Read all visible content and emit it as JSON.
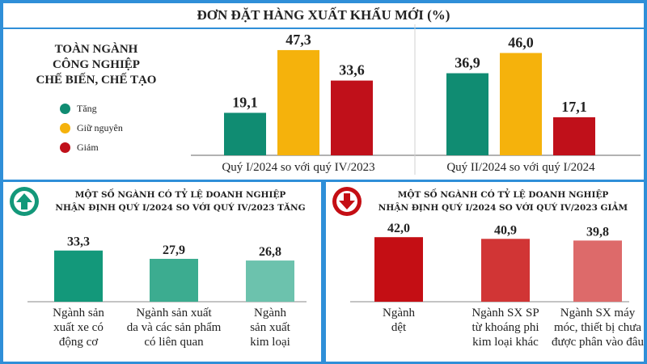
{
  "chart_data": [
    {
      "type": "bar",
      "title": "ĐƠN ĐẶT HÀNG XUẤT KHẨU MỚI (%)",
      "subtitle": "TOÀN NGÀNH CÔNG NGHIỆP CHẾ BIẾN, CHẾ TẠO",
      "subtitle_lines": [
        "TOÀN NGÀNH",
        "CÔNG NGHIỆP",
        "CHẾ BIẾN, CHẾ TẠO"
      ],
      "categories": [
        "Quý I/2024 so với quý IV/2023",
        "Quý II/2024 so với quý I/2024"
      ],
      "series": [
        {
          "name": "Tăng",
          "color": "#108c72",
          "values": [
            19.1,
            36.9
          ],
          "labels": [
            "19,1",
            "36,9"
          ]
        },
        {
          "name": "Giữ nguyên",
          "color": "#f5b20c",
          "values": [
            47.3,
            46.0
          ],
          "labels": [
            "47,3",
            "46,0"
          ]
        },
        {
          "name": "Giảm",
          "color": "#c0101a",
          "values": [
            33.6,
            17.1
          ],
          "labels": [
            "33,6",
            "17,1"
          ]
        }
      ],
      "ylim": [
        0,
        50
      ],
      "legend": "left"
    },
    {
      "type": "bar",
      "title": "MỘT SỐ NGÀNH CÓ TỶ LỆ DOANH NGHIỆP NHẬN ĐỊNH QUÝ I/2024 SO VỚI QUÝ IV/2023 TĂNG",
      "title_lines": [
        "MỘT SỐ NGÀNH CÓ TỶ LỆ DOANH NGHIỆP",
        "NHẬN ĐỊNH QUÝ I/2024 SO VỚI QUÝ IV/2023 TĂNG"
      ],
      "icon": "arrow-up-icon",
      "categories": [
        "Ngành sản xuất xe có động cơ",
        "Ngành sản xuất da và các sản phẩm có liên quan",
        "Ngành sản xuất kim loại"
      ],
      "category_lines": [
        [
          "Ngành sản",
          "xuất xe có",
          "động cơ"
        ],
        [
          "Ngành sản xuất",
          "da và các sản phẩm",
          "có liên quan"
        ],
        [
          "Ngành",
          "sản xuất",
          "kim loại"
        ]
      ],
      "values": [
        33.3,
        27.9,
        26.8
      ],
      "labels": [
        "33,3",
        "27,9",
        "26,8"
      ],
      "colors": [
        "#13987a",
        "#3cac90",
        "#6cc2ad"
      ],
      "ylim": [
        0,
        45
      ]
    },
    {
      "type": "bar",
      "title": "MỘT SỐ NGÀNH CÓ TỶ LỆ DOANH NGHIỆP NHẬN ĐỊNH QUÝ I/2024 SO VỚI QUÝ IV/2023 GIẢM",
      "title_lines": [
        "MỘT SỐ NGÀNH CÓ TỶ LỆ DOANH NGHIỆP",
        "NHẬN ĐỊNH QUÝ I/2024 SO VỚI QUÝ IV/2023 GIẢM"
      ],
      "icon": "arrow-down-icon",
      "categories": [
        "Ngành dệt",
        "Ngành SX SP từ khoáng phi kim loại khác",
        "Ngành SX máy móc, thiết bị chưa được phân vào đâu"
      ],
      "category_lines": [
        [
          "Ngành",
          "dệt"
        ],
        [
          "Ngành SX SP",
          "từ khoáng phi",
          "kim loại khác"
        ],
        [
          "Ngành SX máy",
          "móc, thiết bị chưa",
          "được phân vào đâu"
        ]
      ],
      "values": [
        42.0,
        40.9,
        39.8
      ],
      "labels": [
        "42,0",
        "40,9",
        "39,8"
      ],
      "colors": [
        "#c40e14",
        "#d13535",
        "#dd6a6a"
      ],
      "ylim": [
        0,
        45
      ]
    }
  ]
}
